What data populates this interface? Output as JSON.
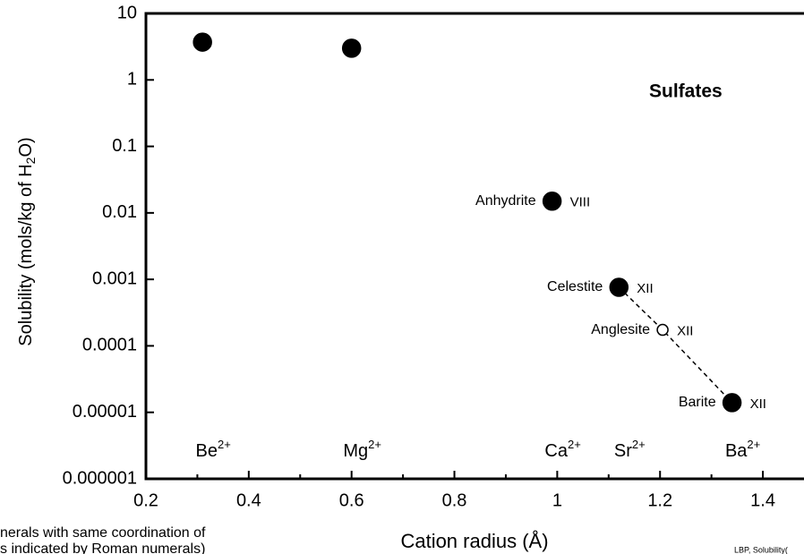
{
  "chart_data": {
    "type": "scatter",
    "title": "Sulfates",
    "x_label": "Cation radius (Å)",
    "y_label": {
      "before": "Solubility (mols/kg of H",
      "sub": "2",
      "after": "O)"
    },
    "xlim": [
      0.2,
      1.48
    ],
    "xticks": [
      0.2,
      0.4,
      0.6,
      0.8,
      1,
      1.2,
      1.4
    ],
    "xminor_ticks": [
      0.3,
      0.5,
      0.7,
      0.9,
      1.1,
      1.3
    ],
    "ylim": [
      1e-06,
      10
    ],
    "yticks": [
      10,
      1,
      0.1,
      0.01,
      0.001,
      0.0001,
      1e-05,
      1e-06
    ],
    "log_y": true,
    "color": "#000000",
    "points": [
      {
        "x": 0.31,
        "y": 3.7,
        "cation": {
          "base": "Be",
          "sup": "2+"
        },
        "filled": true
      },
      {
        "x": 0.6,
        "y": 3.0,
        "cation": {
          "base": "Mg",
          "sup": "2+"
        },
        "filled": true
      },
      {
        "x": 0.99,
        "y": 0.015,
        "name": "Anhydrite",
        "coordination": "VIII",
        "cation": {
          "base": "Ca",
          "sup": "2+"
        },
        "filled": true
      },
      {
        "x": 1.12,
        "y": 0.00076,
        "name": "Celestite",
        "coordination": "XII",
        "cation": {
          "base": "Sr",
          "sup": "2+"
        },
        "filled": true,
        "on_dashed_line": true
      },
      {
        "x": 1.205,
        "y": 0.000174,
        "name": "Anglesite",
        "coordination": "XII",
        "filled": false,
        "on_dashed_line": true
      },
      {
        "x": 1.34,
        "y": 1.4e-05,
        "name": "Barite",
        "coordination": "XII",
        "cation": {
          "base": "Ba",
          "sup": "2+"
        },
        "filled": true,
        "on_dashed_line": true
      }
    ],
    "notes": [
      "nerals with same coordination of",
      "s indicated by Roman numerals)"
    ],
    "credit": "LBP, Solubility("
  }
}
